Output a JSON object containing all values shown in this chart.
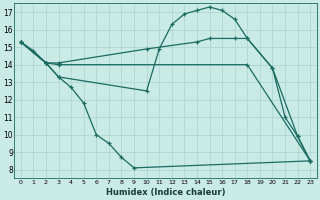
{
  "xlabel": "Humidex (Indice chaleur)",
  "xlim": [
    -0.5,
    23.5
  ],
  "ylim": [
    7.5,
    17.5
  ],
  "xticks": [
    0,
    1,
    2,
    3,
    4,
    5,
    6,
    7,
    8,
    9,
    10,
    11,
    12,
    13,
    14,
    15,
    16,
    17,
    18,
    19,
    20,
    21,
    22,
    23
  ],
  "yticks": [
    8,
    9,
    10,
    11,
    12,
    13,
    14,
    15,
    16,
    17
  ],
  "background_color": "#caeae6",
  "grid_color": "#aad4ce",
  "line_color": "#1a6b60",
  "series": [
    {
      "x": [
        0,
        1,
        2,
        3,
        4,
        5,
        6,
        7,
        8,
        9,
        23
      ],
      "y": [
        15.3,
        14.8,
        14.1,
        13.3,
        12.7,
        11.8,
        10.0,
        9.5,
        8.7,
        8.1,
        8.5
      ]
    },
    {
      "x": [
        0,
        2,
        3,
        10,
        11,
        12,
        13,
        14,
        15,
        16,
        17,
        18,
        20,
        21,
        22,
        23
      ],
      "y": [
        15.3,
        14.1,
        13.3,
        12.5,
        14.9,
        16.3,
        16.9,
        17.1,
        17.3,
        17.1,
        16.6,
        15.5,
        13.8,
        11.0,
        9.9,
        8.5
      ]
    },
    {
      "x": [
        0,
        2,
        3,
        10,
        14,
        15,
        17,
        18,
        20,
        22,
        23
      ],
      "y": [
        15.3,
        14.1,
        14.1,
        14.9,
        15.3,
        15.5,
        15.5,
        15.5,
        13.8,
        9.9,
        8.5
      ]
    },
    {
      "x": [
        0,
        2,
        3,
        18,
        23
      ],
      "y": [
        15.3,
        14.1,
        14.0,
        14.0,
        8.5
      ]
    }
  ]
}
